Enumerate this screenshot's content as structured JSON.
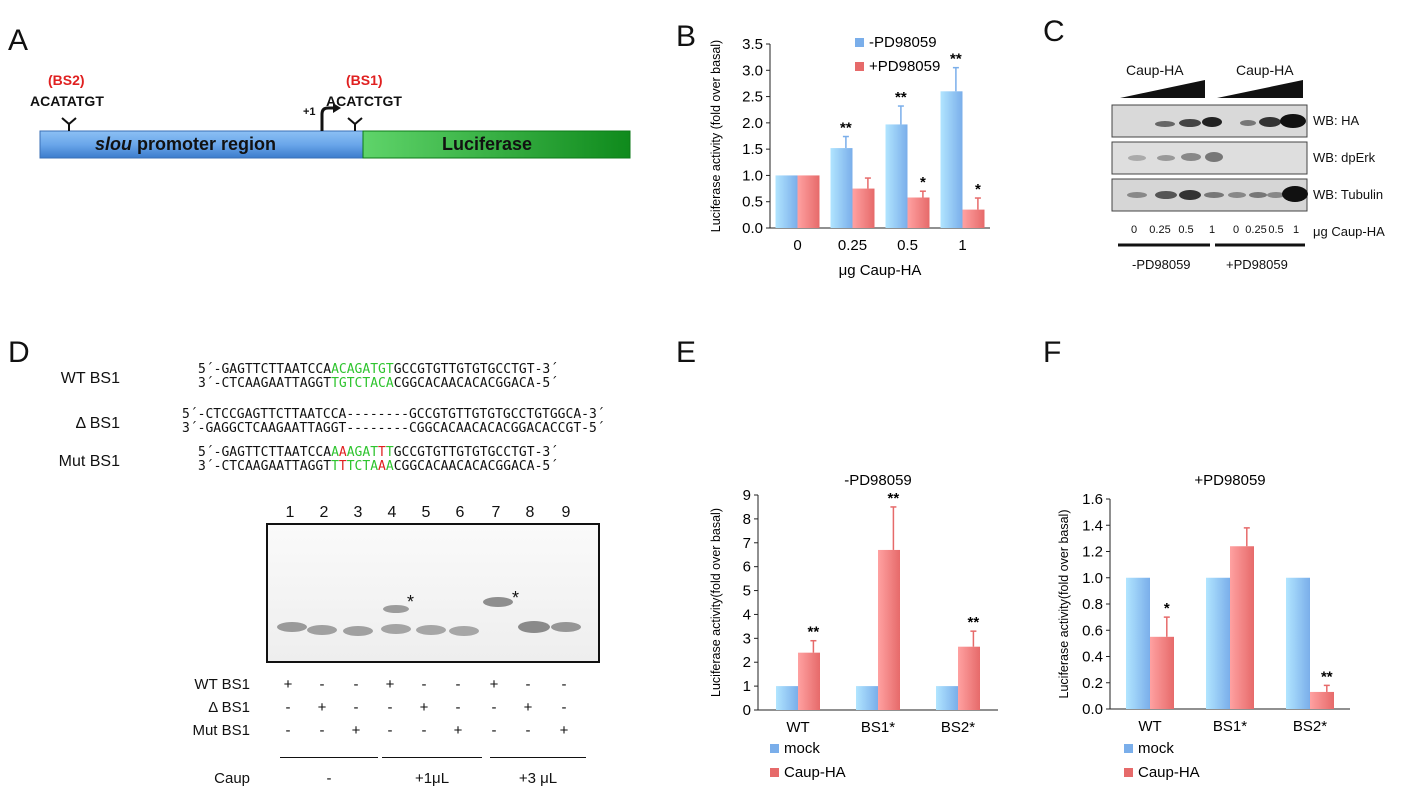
{
  "panels": {
    "A": "A",
    "B": "B",
    "C": "C",
    "D": "D",
    "E": "E",
    "F": "F"
  },
  "panelA": {
    "bs2_label": "(BS2)",
    "bs2_seq": "ACATATGT",
    "bs1_label": "(BS1)",
    "bs1_seq": "ACATCTGT",
    "tss": "+1",
    "promoter_italic": "slou",
    "promoter_rest": " promoter region",
    "reporter": "Luciferase",
    "colors": {
      "promoter": "#5b9be6",
      "reporter": "#1e9a2a",
      "site_label": "#e02020"
    }
  },
  "chart_data": [
    {
      "panel": "B",
      "type": "bar",
      "title": "",
      "categories": [
        "0",
        "0.25",
        "0.5",
        "1"
      ],
      "xlabel": "μg Caup-HA",
      "ylabel": "Luciferase activity (fold over basal)",
      "ylim": [
        0,
        3.5
      ],
      "yticks": [
        "0.0",
        "0.5",
        "1.0",
        "1.5",
        "2.0",
        "2.5",
        "3.0",
        "3.5"
      ],
      "legend_position": "top",
      "series": [
        {
          "name": "-PD98059",
          "color": "#7aaeea",
          "values": [
            1.0,
            1.52,
            1.97,
            2.6
          ],
          "errors": [
            0,
            0.22,
            0.35,
            0.45
          ],
          "annotations": [
            "",
            "**",
            "**",
            "**"
          ]
        },
        {
          "name": "+PD98059",
          "color": "#e66a6a",
          "values": [
            1.0,
            0.75,
            0.58,
            0.35
          ],
          "errors": [
            0,
            0.2,
            0.12,
            0.22
          ],
          "annotations": [
            "",
            "",
            "*",
            "*"
          ]
        }
      ]
    },
    {
      "panel": "E",
      "type": "bar",
      "title": "-PD98059",
      "categories": [
        "WT",
        "BS1*",
        "BS2*"
      ],
      "xlabel": "",
      "ylabel": "Luciferase activity(fold over basal)",
      "ylim": [
        0,
        9
      ],
      "yticks": [
        "0",
        "1",
        "2",
        "3",
        "4",
        "5",
        "6",
        "7",
        "8",
        "9"
      ],
      "legend_position": "bottom",
      "series": [
        {
          "name": "mock",
          "color": "#7aaeea",
          "values": [
            1,
            1,
            1
          ],
          "errors": [
            0,
            0,
            0
          ],
          "annotations": [
            "",
            "",
            ""
          ]
        },
        {
          "name": "Caup-HA",
          "color": "#e66a6a",
          "values": [
            2.4,
            6.7,
            2.65
          ],
          "errors": [
            0.5,
            1.8,
            0.65
          ],
          "annotations": [
            "**",
            "**",
            "**"
          ]
        }
      ]
    },
    {
      "panel": "F",
      "type": "bar",
      "title": "+PD98059",
      "categories": [
        "WT",
        "BS1*",
        "BS2*"
      ],
      "xlabel": "",
      "ylabel": "Luciferase activity(fold over basal)",
      "ylim": [
        0,
        1.6
      ],
      "yticks": [
        "0.0",
        "0.2",
        "0.4",
        "0.6",
        "0.8",
        "1.0",
        "1.2",
        "1.4",
        "1.6"
      ],
      "legend_position": "bottom",
      "series": [
        {
          "name": "mock",
          "color": "#7aaeea",
          "values": [
            1.0,
            1.0,
            1.0
          ],
          "errors": [
            0,
            0,
            0
          ],
          "annotations": [
            "",
            "",
            ""
          ]
        },
        {
          "name": "Caup-HA",
          "color": "#e66a6a",
          "values": [
            0.55,
            1.24,
            0.13
          ],
          "errors": [
            0.15,
            0.14,
            0.05
          ],
          "annotations": [
            "*",
            "",
            "**"
          ]
        }
      ]
    }
  ],
  "panelC": {
    "group1": "Caup-HA",
    "group2": "Caup-HA",
    "blots": [
      "WB: HA",
      "WB: dpErk",
      "WB: Tubulin"
    ],
    "lane_values": [
      "0",
      "0.25",
      "0.5",
      "1",
      "0",
      "0.25",
      "0.5",
      "1"
    ],
    "lane_unit": "μg Caup-HA",
    "cond1": "-PD98059",
    "cond2": "+PD98059"
  },
  "panelD": {
    "seqs": [
      {
        "name": "WT BS1",
        "top": [
          "5´-GAGTTCTTAATCCA",
          "ACAGATGT",
          "GCCGTGTTGTGTGCCTGT-3´"
        ],
        "bottom": [
          "3´-CTCAAGAATTAGGT",
          "TGTCTACA",
          "CGGCACAACACACGGACA-5´"
        ]
      },
      {
        "name": "Δ BS1",
        "top": "5´-CTCCGAGTTCTTAATCCA--------GCCGTGTTGTGTGCCTGTGGCA-3´",
        "bottom": "3´-GAGGCTCAAGAATTAGGT--------CGGCACAACACACGGACACCGT-5´"
      },
      {
        "name": "Mut BS1",
        "top": [
          "5´-GAGTTCTTAATCCA",
          "A",
          "A",
          "AGAT",
          "T",
          "T",
          "GCCGTGTTGTGTGCCTGT-3´"
        ],
        "bottom": [
          "3´-CTCAAGAATTAGGT",
          "T",
          "T",
          "TCTA",
          "A",
          "A",
          "CGGCACAACACACGGACA-5´"
        ]
      }
    ],
    "lanes": [
      "1",
      "2",
      "3",
      "4",
      "5",
      "6",
      "7",
      "8",
      "9"
    ],
    "rows": [
      {
        "label": "WT BS1",
        "vals": [
          "+",
          "-",
          "-",
          "+",
          "-",
          "-",
          "+",
          "-",
          "-"
        ]
      },
      {
        "label": "Δ BS1",
        "vals": [
          "-",
          "+",
          "-",
          "-",
          "+",
          "-",
          "-",
          "+",
          "-"
        ]
      },
      {
        "label": "Mut BS1",
        "vals": [
          "-",
          "-",
          "+",
          "-",
          "-",
          "+",
          "-",
          "-",
          "+"
        ]
      }
    ],
    "caup_label": "Caup",
    "caup_groups": [
      "-",
      "+1μL",
      "+3 μL"
    ],
    "shift_marker": "*"
  }
}
